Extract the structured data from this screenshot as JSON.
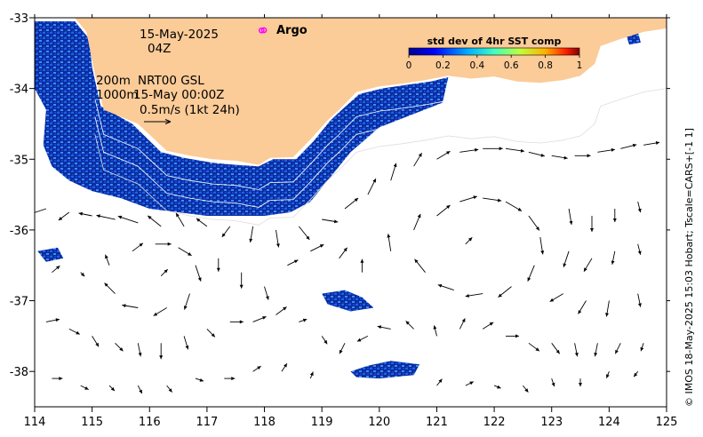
{
  "chart_data": {
    "type": "map",
    "date_label": "15-May-2025",
    "time_label": "04Z",
    "contour_labels": [
      "200m",
      "1000m"
    ],
    "product_label": "NRT00 GSL",
    "product_time": "15-May 00:00Z",
    "scale_label": "0.5m/s (1kt 24h)",
    "legend": {
      "marker_label": "Argo",
      "marker_color": "#ff00ff"
    },
    "colorbar": {
      "title": "std dev of 4hr SST comp",
      "range": [
        0,
        1
      ],
      "ticks": [
        0,
        0.2,
        0.4,
        0.6,
        0.8,
        1
      ],
      "tick_labels": [
        "0",
        "0.2",
        "0.4",
        "0.6",
        "0.8",
        "1"
      ]
    },
    "x_axis": {
      "range": [
        114,
        125
      ],
      "ticks": [
        114,
        115,
        116,
        117,
        118,
        119,
        120,
        121,
        122,
        123,
        124,
        125
      ],
      "tick_labels": [
        "114",
        "115",
        "116",
        "117",
        "118",
        "119",
        "120",
        "121",
        "122",
        "123",
        "124",
        "125"
      ]
    },
    "y_axis": {
      "range": [
        -38.5,
        -33
      ],
      "ticks": [
        -33,
        -34,
        -35,
        -36,
        -37,
        -38
      ],
      "tick_labels": [
        "-33",
        "-34",
        "-35",
        "-36",
        "-37",
        "-38"
      ]
    },
    "colors": {
      "land": "#fbcb98",
      "sst_dark": "#0a2c9c",
      "sst_mid": "#1f5ff0",
      "sst_light": "#3a8cff",
      "frame": "#000000"
    },
    "coastline": [
      [
        114.0,
        -33.0
      ],
      [
        125.0,
        -33.0
      ],
      [
        125.0,
        -33.15
      ],
      [
        124.6,
        -33.2
      ],
      [
        124.2,
        -33.3
      ],
      [
        123.85,
        -33.4
      ],
      [
        123.75,
        -33.65
      ],
      [
        123.5,
        -33.82
      ],
      [
        123.2,
        -33.88
      ],
      [
        122.8,
        -33.92
      ],
      [
        122.4,
        -33.9
      ],
      [
        122.0,
        -33.83
      ],
      [
        121.6,
        -33.86
      ],
      [
        121.2,
        -33.82
      ],
      [
        120.8,
        -33.88
      ],
      [
        120.4,
        -33.93
      ],
      [
        120.0,
        -33.97
      ],
      [
        119.6,
        -34.05
      ],
      [
        119.3,
        -34.3
      ],
      [
        119.1,
        -34.45
      ],
      [
        118.8,
        -34.72
      ],
      [
        118.5,
        -34.97
      ],
      [
        118.1,
        -34.98
      ],
      [
        117.9,
        -35.08
      ],
      [
        117.5,
        -35.02
      ],
      [
        117.1,
        -35.0
      ],
      [
        116.7,
        -34.95
      ],
      [
        116.3,
        -34.88
      ],
      [
        115.8,
        -34.5
      ],
      [
        115.2,
        -34.3
      ],
      [
        115.05,
        -33.8
      ],
      [
        115.0,
        -33.6
      ],
      [
        114.9,
        -33.2
      ],
      [
        114.7,
        -33.0
      ]
    ],
    "sst_strip": [
      [
        114.0,
        -33.05
      ],
      [
        114.7,
        -33.05
      ],
      [
        114.95,
        -33.3
      ],
      [
        115.0,
        -33.7
      ],
      [
        115.15,
        -34.25
      ],
      [
        115.7,
        -34.5
      ],
      [
        116.2,
        -34.9
      ],
      [
        116.6,
        -34.98
      ],
      [
        117.1,
        -35.05
      ],
      [
        117.5,
        -35.08
      ],
      [
        117.9,
        -35.1
      ],
      [
        118.15,
        -35.0
      ],
      [
        118.55,
        -35.0
      ],
      [
        118.85,
        -34.75
      ],
      [
        119.15,
        -34.45
      ],
      [
        119.35,
        -34.3
      ],
      [
        119.65,
        -34.08
      ],
      [
        120.05,
        -34.0
      ],
      [
        120.45,
        -33.95
      ],
      [
        120.9,
        -33.9
      ],
      [
        121.2,
        -33.84
      ],
      [
        121.1,
        -34.2
      ],
      [
        120.0,
        -34.55
      ],
      [
        119.5,
        -34.9
      ],
      [
        119.1,
        -35.3
      ],
      [
        118.8,
        -35.6
      ],
      [
        118.45,
        -35.75
      ],
      [
        118.0,
        -35.8
      ],
      [
        117.5,
        -35.8
      ],
      [
        117.0,
        -35.8
      ],
      [
        116.5,
        -35.75
      ],
      [
        116.0,
        -35.7
      ],
      [
        115.5,
        -35.55
      ],
      [
        115.0,
        -35.45
      ],
      [
        114.6,
        -35.3
      ],
      [
        114.3,
        -35.1
      ],
      [
        114.15,
        -34.8
      ],
      [
        114.2,
        -34.3
      ],
      [
        114.0,
        -34.0
      ]
    ],
    "sst_patches": [
      [
        [
          119.0,
          -36.9
        ],
        [
          119.4,
          -36.85
        ],
        [
          119.7,
          -36.95
        ],
        [
          119.9,
          -37.1
        ],
        [
          119.5,
          -37.15
        ],
        [
          119.1,
          -37.05
        ]
      ],
      [
        [
          119.5,
          -38.0
        ],
        [
          119.8,
          -37.92
        ],
        [
          120.2,
          -37.85
        ],
        [
          120.7,
          -37.9
        ],
        [
          120.6,
          -38.05
        ],
        [
          120.0,
          -38.1
        ],
        [
          119.6,
          -38.08
        ]
      ],
      [
        [
          114.05,
          -36.3
        ],
        [
          114.4,
          -36.25
        ],
        [
          114.5,
          -36.4
        ],
        [
          114.2,
          -36.45
        ]
      ],
      [
        [
          124.3,
          -33.25
        ],
        [
          124.5,
          -33.2
        ],
        [
          124.55,
          -33.35
        ],
        [
          124.35,
          -33.38
        ]
      ]
    ],
    "argo_floats": [
      [
        117.95,
        -33.18
      ]
    ],
    "currents": [
      {
        "lon": 114.2,
        "lat": -35.7,
        "u": -0.12,
        "v": -0.04
      },
      {
        "lon": 114.6,
        "lat": -35.75,
        "u": -0.08,
        "v": -0.06
      },
      {
        "lon": 115.0,
        "lat": -35.8,
        "u": -0.1,
        "v": 0.02
      },
      {
        "lon": 115.4,
        "lat": -35.85,
        "u": -0.14,
        "v": 0.03
      },
      {
        "lon": 115.8,
        "lat": -35.9,
        "u": -0.15,
        "v": 0.05
      },
      {
        "lon": 116.2,
        "lat": -35.95,
        "u": -0.1,
        "v": 0.08
      },
      {
        "lon": 116.6,
        "lat": -35.95,
        "u": -0.06,
        "v": 0.1
      },
      {
        "lon": 117.0,
        "lat": -35.95,
        "u": -0.08,
        "v": 0.06
      },
      {
        "lon": 117.4,
        "lat": -35.95,
        "u": -0.06,
        "v": -0.08
      },
      {
        "lon": 117.8,
        "lat": -35.95,
        "u": -0.02,
        "v": -0.12
      },
      {
        "lon": 118.2,
        "lat": -36.0,
        "u": 0.02,
        "v": -0.13
      },
      {
        "lon": 118.6,
        "lat": -35.95,
        "u": 0.08,
        "v": -0.1
      },
      {
        "lon": 119.0,
        "lat": -35.85,
        "u": 0.12,
        "v": -0.02
      },
      {
        "lon": 119.4,
        "lat": -35.7,
        "u": 0.1,
        "v": 0.08
      },
      {
        "lon": 119.8,
        "lat": -35.5,
        "u": 0.06,
        "v": 0.12
      },
      {
        "lon": 120.2,
        "lat": -35.3,
        "u": 0.04,
        "v": 0.13
      },
      {
        "lon": 120.6,
        "lat": -35.1,
        "u": 0.06,
        "v": 0.1
      },
      {
        "lon": 121.0,
        "lat": -35.0,
        "u": 0.1,
        "v": 0.06
      },
      {
        "lon": 121.4,
        "lat": -34.9,
        "u": 0.14,
        "v": 0.02
      },
      {
        "lon": 121.8,
        "lat": -34.85,
        "u": 0.15,
        "v": 0.0
      },
      {
        "lon": 122.2,
        "lat": -34.85,
        "u": 0.14,
        "v": -0.02
      },
      {
        "lon": 122.6,
        "lat": -34.9,
        "u": 0.12,
        "v": -0.03
      },
      {
        "lon": 123.0,
        "lat": -34.95,
        "u": 0.12,
        "v": -0.02
      },
      {
        "lon": 123.4,
        "lat": -34.95,
        "u": 0.12,
        "v": 0.0
      },
      {
        "lon": 123.8,
        "lat": -34.9,
        "u": 0.13,
        "v": 0.02
      },
      {
        "lon": 124.2,
        "lat": -34.85,
        "u": 0.12,
        "v": 0.03
      },
      {
        "lon": 124.6,
        "lat": -34.8,
        "u": 0.12,
        "v": 0.02
      },
      {
        "lon": 120.2,
        "lat": -36.3,
        "u": -0.02,
        "v": 0.13
      },
      {
        "lon": 120.6,
        "lat": -36.0,
        "u": 0.05,
        "v": 0.12
      },
      {
        "lon": 121.0,
        "lat": -35.8,
        "u": 0.1,
        "v": 0.08
      },
      {
        "lon": 121.4,
        "lat": -35.6,
        "u": 0.13,
        "v": 0.04
      },
      {
        "lon": 121.8,
        "lat": -35.55,
        "u": 0.14,
        "v": -0.02
      },
      {
        "lon": 122.2,
        "lat": -35.6,
        "u": 0.12,
        "v": -0.07
      },
      {
        "lon": 122.6,
        "lat": -35.8,
        "u": 0.08,
        "v": -0.11
      },
      {
        "lon": 122.8,
        "lat": -36.1,
        "u": 0.02,
        "v": -0.13
      },
      {
        "lon": 122.7,
        "lat": -36.5,
        "u": -0.05,
        "v": -0.12
      },
      {
        "lon": 122.3,
        "lat": -36.8,
        "u": -0.1,
        "v": -0.08
      },
      {
        "lon": 121.8,
        "lat": -36.9,
        "u": -0.13,
        "v": -0.02
      },
      {
        "lon": 121.3,
        "lat": -36.85,
        "u": -0.12,
        "v": 0.04
      },
      {
        "lon": 120.8,
        "lat": -36.6,
        "u": -0.08,
        "v": 0.1
      },
      {
        "lon": 121.5,
        "lat": -36.2,
        "u": 0.05,
        "v": 0.05
      },
      {
        "lon": 114.3,
        "lat": -36.6,
        "u": 0.06,
        "v": 0.05
      },
      {
        "lon": 114.8,
        "lat": -36.6,
        "u": 0.03,
        "v": -0.03
      },
      {
        "lon": 115.3,
        "lat": -36.5,
        "u": -0.03,
        "v": 0.08
      },
      {
        "lon": 115.7,
        "lat": -36.3,
        "u": 0.08,
        "v": 0.06
      },
      {
        "lon": 116.1,
        "lat": -36.2,
        "u": 0.12,
        "v": 0.0
      },
      {
        "lon": 116.5,
        "lat": -36.25,
        "u": 0.1,
        "v": -0.06
      },
      {
        "lon": 116.8,
        "lat": -36.5,
        "u": 0.04,
        "v": -0.12
      },
      {
        "lon": 116.7,
        "lat": -36.9,
        "u": -0.04,
        "v": -0.12
      },
      {
        "lon": 116.3,
        "lat": -37.1,
        "u": -0.1,
        "v": -0.06
      },
      {
        "lon": 115.8,
        "lat": -37.1,
        "u": -0.12,
        "v": 0.02
      },
      {
        "lon": 115.4,
        "lat": -36.9,
        "u": -0.08,
        "v": 0.08
      },
      {
        "lon": 116.2,
        "lat": -36.65,
        "u": 0.05,
        "v": 0.05
      },
      {
        "lon": 117.2,
        "lat": -36.4,
        "u": 0.0,
        "v": -0.1
      },
      {
        "lon": 117.6,
        "lat": -36.6,
        "u": 0.0,
        "v": -0.12
      },
      {
        "lon": 118.0,
        "lat": -36.8,
        "u": 0.03,
        "v": -0.1
      },
      {
        "lon": 118.4,
        "lat": -36.5,
        "u": 0.08,
        "v": 0.04
      },
      {
        "lon": 118.8,
        "lat": -36.3,
        "u": 0.1,
        "v": 0.05
      },
      {
        "lon": 119.3,
        "lat": -36.4,
        "u": 0.06,
        "v": 0.08
      },
      {
        "lon": 119.7,
        "lat": -36.6,
        "u": 0.0,
        "v": 0.1
      },
      {
        "lon": 123.3,
        "lat": -35.7,
        "u": 0.02,
        "v": -0.12
      },
      {
        "lon": 123.7,
        "lat": -35.8,
        "u": 0.0,
        "v": -0.12
      },
      {
        "lon": 124.1,
        "lat": -35.7,
        "u": 0.0,
        "v": -0.1
      },
      {
        "lon": 124.5,
        "lat": -35.6,
        "u": 0.02,
        "v": -0.08
      },
      {
        "lon": 123.3,
        "lat": -36.3,
        "u": -0.04,
        "v": -0.12
      },
      {
        "lon": 123.7,
        "lat": -36.4,
        "u": -0.06,
        "v": -0.1
      },
      {
        "lon": 124.1,
        "lat": -36.3,
        "u": -0.02,
        "v": -0.1
      },
      {
        "lon": 124.5,
        "lat": -36.2,
        "u": 0.02,
        "v": -0.08
      },
      {
        "lon": 123.2,
        "lat": -36.9,
        "u": -0.1,
        "v": -0.06
      },
      {
        "lon": 123.6,
        "lat": -37.0,
        "u": -0.06,
        "v": -0.1
      },
      {
        "lon": 124.0,
        "lat": -37.0,
        "u": -0.02,
        "v": -0.12
      },
      {
        "lon": 124.5,
        "lat": -36.9,
        "u": 0.02,
        "v": -0.1
      },
      {
        "lon": 114.2,
        "lat": -37.3,
        "u": 0.1,
        "v": 0.02
      },
      {
        "lon": 114.6,
        "lat": -37.4,
        "u": 0.08,
        "v": -0.04
      },
      {
        "lon": 115.0,
        "lat": -37.5,
        "u": 0.05,
        "v": -0.08
      },
      {
        "lon": 115.4,
        "lat": -37.6,
        "u": 0.06,
        "v": -0.06
      },
      {
        "lon": 115.8,
        "lat": -37.6,
        "u": 0.02,
        "v": -0.1
      },
      {
        "lon": 116.2,
        "lat": -37.6,
        "u": 0.0,
        "v": -0.12
      },
      {
        "lon": 116.6,
        "lat": -37.5,
        "u": 0.03,
        "v": -0.1
      },
      {
        "lon": 117.0,
        "lat": -37.4,
        "u": 0.06,
        "v": -0.06
      },
      {
        "lon": 117.4,
        "lat": -37.3,
        "u": 0.1,
        "v": 0.0
      },
      {
        "lon": 117.8,
        "lat": -37.3,
        "u": 0.1,
        "v": 0.04
      },
      {
        "lon": 118.2,
        "lat": -37.2,
        "u": 0.08,
        "v": 0.06
      },
      {
        "lon": 118.6,
        "lat": -37.3,
        "u": 0.06,
        "v": 0.02
      },
      {
        "lon": 119.0,
        "lat": -37.5,
        "u": 0.04,
        "v": -0.06
      },
      {
        "lon": 119.4,
        "lat": -37.6,
        "u": -0.04,
        "v": -0.08
      },
      {
        "lon": 119.8,
        "lat": -37.5,
        "u": -0.08,
        "v": -0.04
      },
      {
        "lon": 120.2,
        "lat": -37.4,
        "u": -0.1,
        "v": 0.02
      },
      {
        "lon": 120.6,
        "lat": -37.4,
        "u": -0.06,
        "v": 0.06
      },
      {
        "lon": 121.0,
        "lat": -37.5,
        "u": -0.02,
        "v": 0.08
      },
      {
        "lon": 121.4,
        "lat": -37.4,
        "u": 0.04,
        "v": 0.08
      },
      {
        "lon": 121.8,
        "lat": -37.4,
        "u": 0.08,
        "v": 0.05
      },
      {
        "lon": 122.2,
        "lat": -37.5,
        "u": 0.1,
        "v": 0.0
      },
      {
        "lon": 122.6,
        "lat": -37.6,
        "u": 0.08,
        "v": -0.06
      },
      {
        "lon": 123.0,
        "lat": -37.6,
        "u": 0.06,
        "v": -0.08
      },
      {
        "lon": 123.4,
        "lat": -37.6,
        "u": 0.02,
        "v": -0.1
      },
      {
        "lon": 123.8,
        "lat": -37.6,
        "u": -0.02,
        "v": -0.1
      },
      {
        "lon": 124.2,
        "lat": -37.6,
        "u": -0.04,
        "v": -0.08
      },
      {
        "lon": 124.6,
        "lat": -37.6,
        "u": -0.02,
        "v": -0.06
      },
      {
        "lon": 114.3,
        "lat": -38.1,
        "u": 0.08,
        "v": 0.0
      },
      {
        "lon": 114.8,
        "lat": -38.2,
        "u": 0.06,
        "v": -0.03
      },
      {
        "lon": 115.3,
        "lat": -38.2,
        "u": 0.04,
        "v": -0.04
      },
      {
        "lon": 115.8,
        "lat": -38.2,
        "u": 0.03,
        "v": -0.06
      },
      {
        "lon": 116.3,
        "lat": -38.2,
        "u": 0.04,
        "v": -0.05
      },
      {
        "lon": 116.8,
        "lat": -38.1,
        "u": 0.06,
        "v": -0.02
      },
      {
        "lon": 117.3,
        "lat": -38.1,
        "u": 0.08,
        "v": 0.0
      },
      {
        "lon": 117.8,
        "lat": -38.0,
        "u": 0.06,
        "v": 0.04
      },
      {
        "lon": 118.3,
        "lat": -38.0,
        "u": 0.04,
        "v": 0.06
      },
      {
        "lon": 118.8,
        "lat": -38.1,
        "u": 0.02,
        "v": 0.05
      },
      {
        "lon": 121.0,
        "lat": -38.2,
        "u": 0.04,
        "v": 0.05
      },
      {
        "lon": 121.5,
        "lat": -38.2,
        "u": 0.06,
        "v": 0.03
      },
      {
        "lon": 122.0,
        "lat": -38.2,
        "u": 0.05,
        "v": -0.02
      },
      {
        "lon": 122.5,
        "lat": -38.2,
        "u": 0.04,
        "v": -0.05
      },
      {
        "lon": 123.0,
        "lat": -38.1,
        "u": 0.02,
        "v": -0.06
      },
      {
        "lon": 123.5,
        "lat": -38.1,
        "u": 0.0,
        "v": -0.06
      },
      {
        "lon": 124.0,
        "lat": -38.0,
        "u": -0.02,
        "v": -0.05
      },
      {
        "lon": 124.5,
        "lat": -38.0,
        "u": -0.03,
        "v": -0.04
      }
    ]
  },
  "credit": "© IMOS 18-May-2025 15:03 Hobart; Tscale=CARS+[-1 1]"
}
